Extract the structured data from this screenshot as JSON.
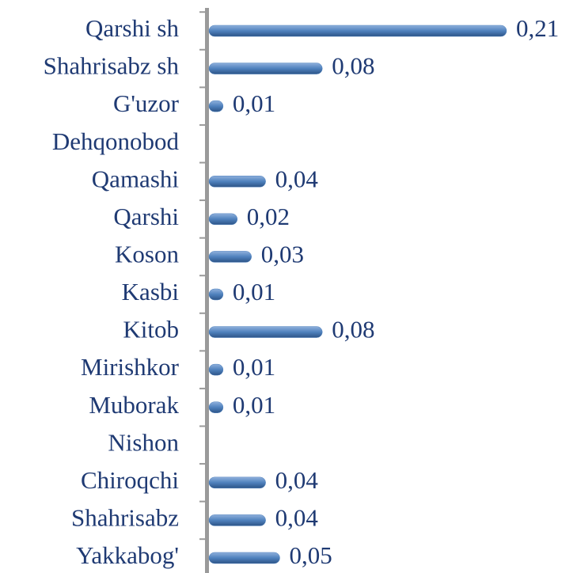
{
  "chart_data": {
    "type": "bar",
    "orientation": "horizontal",
    "categories": [
      "Qarshi sh",
      "Shahrisabz sh",
      "G'uzor",
      "Dehqonobod",
      "Qamashi",
      "Qarshi",
      "Koson",
      "Kasbi",
      "Kitob",
      "Mirishkor",
      "Muborak",
      "Nishon",
      "Chiroqchi",
      "Shahrisabz",
      "Yakkabog'"
    ],
    "values": [
      0.21,
      0.08,
      0.01,
      null,
      0.04,
      0.02,
      0.03,
      0.01,
      0.08,
      0.01,
      0.01,
      null,
      0.04,
      0.04,
      0.05
    ],
    "value_labels": [
      "0,21",
      "0,08",
      "0,01",
      null,
      "0,04",
      "0,02",
      "0,03",
      "0,01",
      "0,08",
      "0,01",
      "0,01",
      null,
      "0,04",
      "0,04",
      "0,05"
    ],
    "color": "#4f81bd",
    "grid": false
  }
}
